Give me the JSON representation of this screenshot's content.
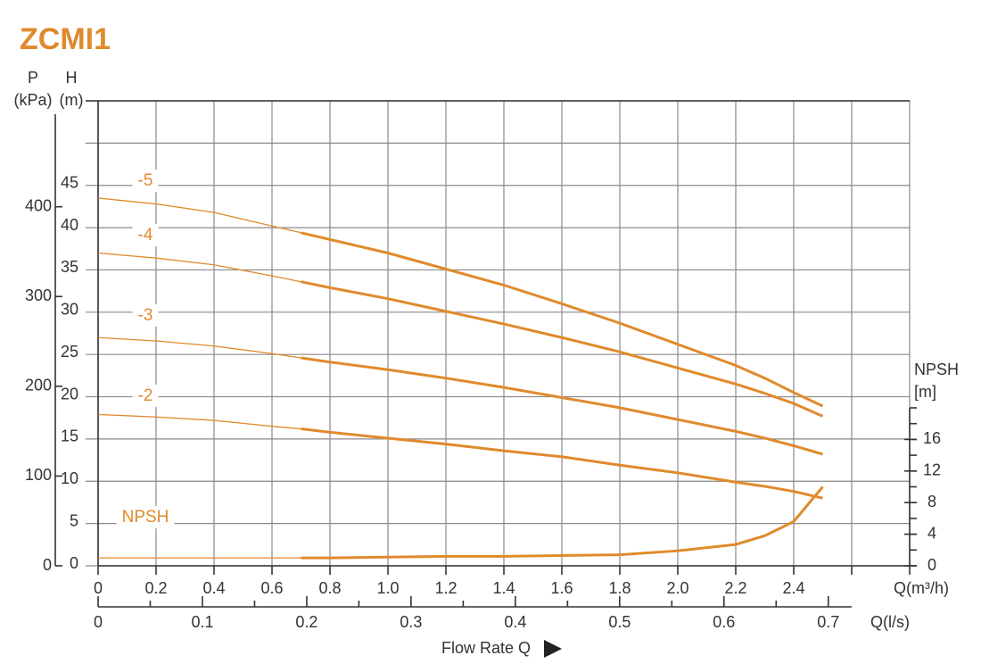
{
  "chart_data": {
    "type": "line",
    "title": "ZCMI1",
    "x_label": "Q(m³/h)",
    "x2_label": "Q(l/s)",
    "axis_title": "Flow Rate Q",
    "y_label": "H",
    "y_unit": "(m)",
    "y2_label": "P",
    "y2_unit": "(kPa)",
    "y3_label": "NPSH",
    "y3_unit": "[m]",
    "x": [
      0,
      0.2,
      0.4,
      0.6,
      0.7,
      0.8,
      1.0,
      1.2,
      1.4,
      1.6,
      1.8,
      2.0,
      2.2,
      2.3,
      2.4,
      2.5
    ],
    "xlim": [
      0,
      2.8
    ],
    "xticks": [
      0,
      0.2,
      0.4,
      0.6,
      0.8,
      {
        "value": 1.0,
        "label": "1.0"
      },
      1.2,
      1.4,
      1.6,
      1.8,
      {
        "value": 2.0,
        "label": "2.0"
      },
      2.2,
      2.4
    ],
    "x2lim": [
      0,
      0.778
    ],
    "x2ticks": [
      0,
      0.1,
      0.2,
      0.3,
      0.4,
      0.5,
      0.6,
      0.7
    ],
    "ylim": [
      0,
      55
    ],
    "yticks": [
      0,
      5,
      10,
      15,
      20,
      25,
      30,
      35,
      40,
      45
    ],
    "y2lim": [
      0,
      518
    ],
    "y2ticks": [
      0,
      100,
      200,
      300,
      400
    ],
    "y3lim": [
      0,
      20
    ],
    "y3ticks": [
      0,
      4,
      8,
      12,
      16
    ],
    "highlight_range": [
      0.7,
      2.5
    ],
    "grid": true,
    "series": [
      {
        "name": "-5",
        "color": "#e08a2c",
        "values": [
          43.5,
          42.8,
          41.8,
          40.2,
          39.4,
          38.6,
          37.0,
          35.1,
          33.2,
          31.0,
          28.7,
          26.2,
          23.7,
          22.2,
          20.5,
          18.9
        ]
      },
      {
        "name": "-4",
        "color": "#e08a2c",
        "values": [
          37.0,
          36.4,
          35.6,
          34.3,
          33.6,
          32.9,
          31.6,
          30.1,
          28.6,
          27.0,
          25.3,
          23.4,
          21.5,
          20.4,
          19.2,
          17.7
        ]
      },
      {
        "name": "-3",
        "color": "#e08a2c",
        "values": [
          27.0,
          26.6,
          26.0,
          25.1,
          24.6,
          24.1,
          23.2,
          22.2,
          21.1,
          19.9,
          18.7,
          17.3,
          15.9,
          15.1,
          14.2,
          13.2
        ]
      },
      {
        "name": "-2",
        "color": "#e08a2c",
        "values": [
          17.9,
          17.6,
          17.2,
          16.5,
          16.2,
          15.8,
          15.1,
          14.4,
          13.6,
          12.9,
          11.9,
          11.0,
          9.9,
          9.4,
          8.8,
          8.0
        ]
      },
      {
        "name": "NPSH",
        "color": "#e08a2c",
        "axis": "y3",
        "values": [
          1.0,
          1.0,
          1.0,
          1.0,
          1.0,
          1.0,
          1.1,
          1.2,
          1.2,
          1.3,
          1.4,
          1.9,
          2.7,
          3.8,
          5.6,
          10.0
        ]
      }
    ]
  }
}
